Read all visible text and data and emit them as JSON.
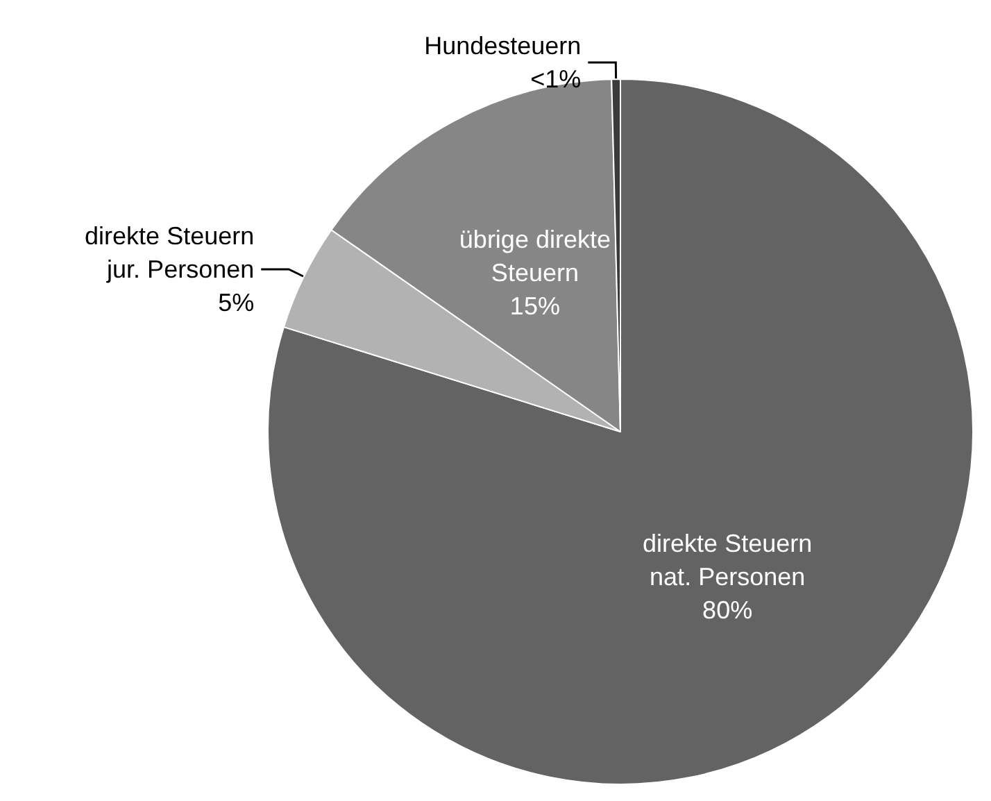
{
  "chart_data": {
    "type": "pie",
    "categories": [
      "direkte Steuern\nnat. Personen",
      "direkte Steuern\njur. Personen",
      "übrige direkte\nSteuern",
      "Hundesteuern"
    ],
    "values": [
      79.8,
      4.9,
      14.9,
      0.4
    ],
    "value_labels": [
      "80%",
      "5%",
      "15%",
      "<1%"
    ],
    "colors": [
      "#636363",
      "#b2b2b2",
      "#868686",
      "#3a3a3a"
    ]
  }
}
